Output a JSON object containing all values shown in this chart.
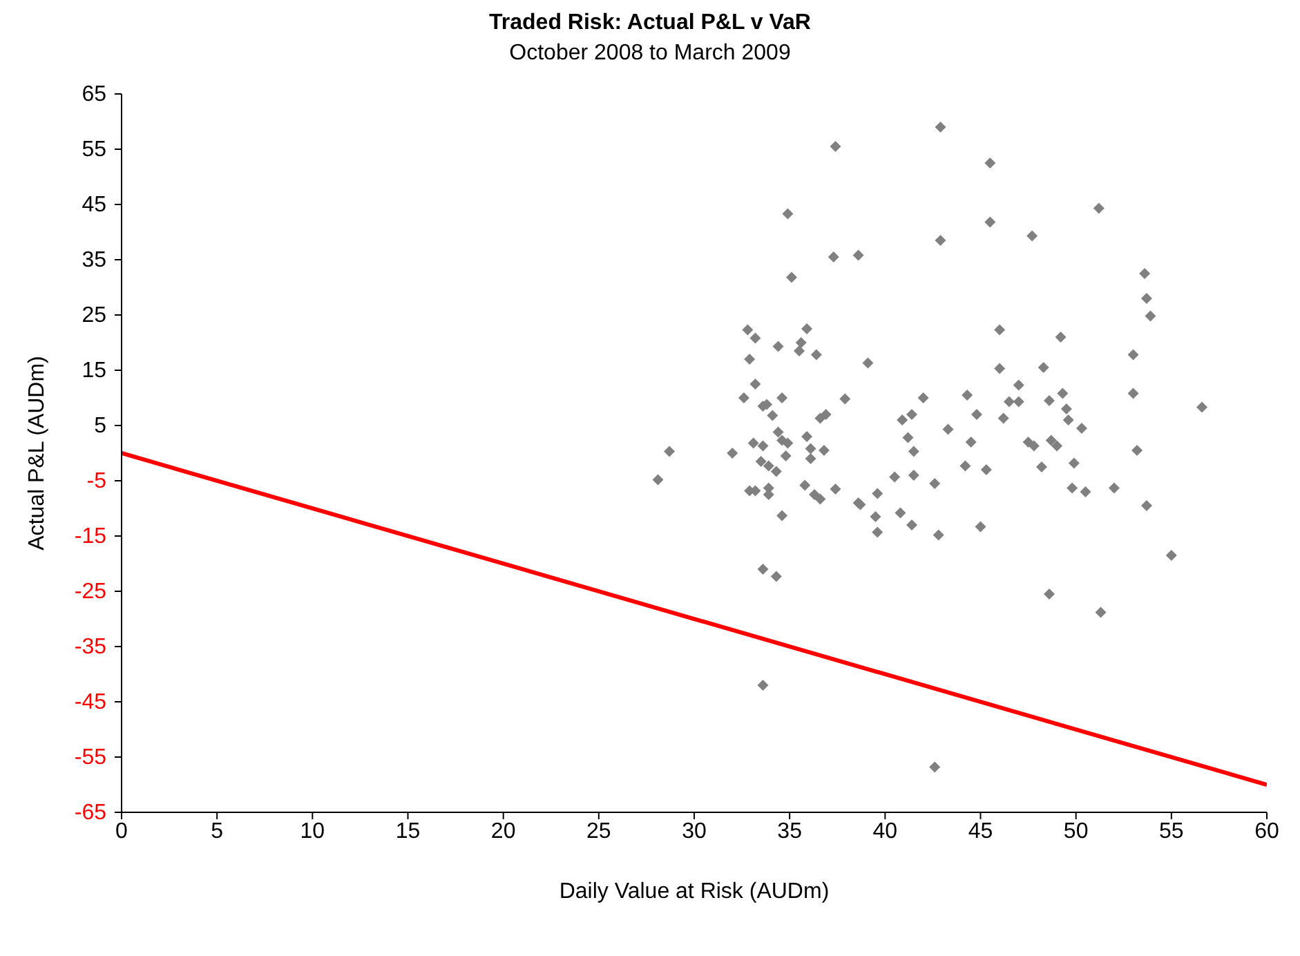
{
  "chart_data": {
    "type": "scatter",
    "title": "Traded Risk: Actual P&L v VaR",
    "subtitle": "October 2008 to March 2009",
    "xlabel": "Daily Value at Risk (AUDm)",
    "ylabel": "Actual P&L (AUDm)",
    "xlim": [
      0,
      60
    ],
    "xticks": [
      0,
      5,
      10,
      15,
      20,
      25,
      30,
      35,
      40,
      45,
      50,
      55,
      60
    ],
    "ylim": [
      -65,
      65
    ],
    "yticks": [
      -65,
      -55,
      -45,
      -35,
      -25,
      -15,
      -5,
      5,
      15,
      25,
      35,
      45,
      55,
      65
    ],
    "grid": false,
    "marker": "diamond",
    "series": [
      {
        "color": "#808080",
        "x": [
          42.9,
          37.4,
          34.9,
          37.3,
          38.6,
          42.9,
          35.1,
          32.8,
          33.2,
          35.9,
          35.6,
          35.5,
          34.4,
          36.4,
          32.9,
          39.1,
          33.2,
          32.6,
          34.6,
          37.9,
          42.0,
          44.3,
          33.6,
          33.8,
          34.1,
          36.6,
          36.9,
          40.9,
          41.4,
          43.3,
          41.2,
          35.9,
          34.4,
          34.6,
          34.9,
          33.1,
          33.6,
          36.1,
          36.8,
          41.5,
          28.7,
          32.0,
          28.1,
          33.5,
          33.9,
          34.3,
          34.8,
          36.1,
          32.9,
          33.2,
          33.9,
          33.9,
          35.8,
          36.3,
          36.6,
          37.4,
          34.6,
          38.6,
          38.7,
          39.6,
          39.5,
          39.6,
          40.5,
          41.5,
          42.6,
          40.8,
          41.4,
          42.8,
          44.2,
          33.6,
          34.3,
          33.6,
          42.6,
          45.5,
          45.5,
          47.7,
          51.2,
          53.6,
          53.7,
          53.9,
          46.0,
          49.2,
          53.0,
          46.0,
          48.3,
          53.0,
          49.3,
          47.0,
          46.5,
          47.0,
          48.6,
          56.6,
          44.8,
          46.2,
          49.5,
          49.6,
          50.3,
          44.5,
          47.5,
          47.8,
          48.7,
          49.0,
          53.2,
          45.3,
          48.2,
          49.9,
          49.8,
          50.5,
          52.0,
          53.7,
          45.0,
          55.0,
          48.6,
          51.3
        ],
        "values": [
          59,
          55.5,
          43.3,
          35.5,
          35.8,
          38.5,
          31.8,
          22.3,
          20.8,
          22.5,
          20,
          18.5,
          19.3,
          17.8,
          17,
          16.3,
          12.5,
          10,
          10,
          9.8,
          10,
          10.5,
          8.5,
          8.8,
          6.8,
          6.3,
          7,
          6,
          7,
          4.3,
          2.8,
          3,
          3.8,
          2.3,
          1.8,
          1.8,
          1.3,
          0.8,
          0.5,
          0.3,
          0.3,
          0,
          -4.8,
          -1.5,
          -2.3,
          -3.3,
          -0.5,
          -1,
          -6.8,
          -6.8,
          -6.3,
          -7.5,
          -5.8,
          -7.5,
          -8.3,
          -6.5,
          -11.3,
          -9,
          -9.3,
          -7.3,
          -11.5,
          -14.3,
          -4.3,
          -4,
          -5.5,
          -10.8,
          -13,
          -14.8,
          -2.3,
          -21,
          -22.3,
          -42,
          -56.8,
          52.5,
          41.8,
          39.3,
          44.3,
          32.5,
          28,
          24.8,
          22.3,
          21,
          17.8,
          15.3,
          15.5,
          10.8,
          10.8,
          12.3,
          9.3,
          9.3,
          9.5,
          8.3,
          7,
          6.3,
          8,
          6,
          4.5,
          2,
          2,
          1.3,
          2.3,
          1.3,
          0.5,
          -3,
          -2.5,
          -1.8,
          -6.3,
          -7,
          -6.3,
          -9.5,
          -13.3,
          -18.5,
          -25.5,
          -28.8
        ]
      },
      {
        "type": "line",
        "color": "#ff0000",
        "marker": "none",
        "x": [
          0,
          60
        ],
        "values": [
          0,
          -60
        ]
      }
    ]
  }
}
